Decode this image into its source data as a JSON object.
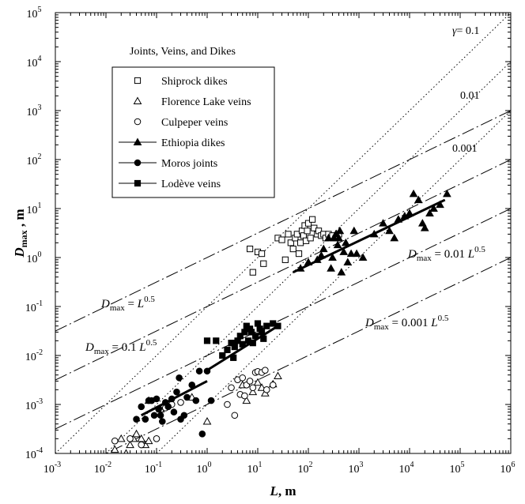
{
  "chart_data": {
    "type": "scatter",
    "title": "Joints, Veins, and Dikes",
    "xlabel": "L, m",
    "ylabel": "Dmax , m",
    "x_scale": "log",
    "y_scale": "log",
    "xlim": [
      0.001,
      1000000
    ],
    "ylim": [
      0.0001,
      100000
    ],
    "x_tick_exponents": [
      "-3",
      "-2",
      "-1",
      "0",
      "1",
      "2",
      "3",
      "4",
      "5",
      "6"
    ],
    "y_tick_exponents": [
      "-4",
      "-3",
      "-2",
      "-1",
      "0",
      "1",
      "2",
      "3",
      "4",
      "5"
    ],
    "grid": false,
    "legend": {
      "placement": "upper-left",
      "entries": [
        {
          "label": "Shiprock dikes",
          "marker": "square-open",
          "line": "none"
        },
        {
          "label": "Florence Lake veins",
          "marker": "triangle-open",
          "line": "none"
        },
        {
          "label": "Culpeper veins",
          "marker": "circle-open",
          "line": "none"
        },
        {
          "label": "Ethiopia dikes",
          "marker": "triangle-filled",
          "line": "solid"
        },
        {
          "label": "Moros joints",
          "marker": "circle-filled",
          "line": "solid"
        },
        {
          "label": "Lodève veins",
          "marker": "square-filled",
          "line": "solid"
        }
      ]
    },
    "reference_lines": [
      {
        "kind": "dotted",
        "label": "γ= 0.1",
        "slope": 1,
        "coefficient": 0.1,
        "x_range": [
          0.001,
          1000000
        ]
      },
      {
        "kind": "dotted",
        "label": "0.01",
        "slope": 1,
        "coefficient": 0.01,
        "x_range": [
          0.01,
          1000000
        ]
      },
      {
        "kind": "dotted",
        "label": "0.001",
        "slope": 1,
        "coefficient": 0.001,
        "x_range": [
          0.1,
          1000000
        ]
      },
      {
        "kind": "dashed",
        "label": "L",
        "label_prefix": "D",
        "label_sub": "max",
        "label_coef": " = ",
        "label_exp": "0.5",
        "slope": 0.5,
        "coefficient": 1,
        "x_range": [
          0.001,
          1000000
        ]
      },
      {
        "kind": "dashed",
        "label": "L",
        "label_prefix": "D",
        "label_sub": "max",
        "label_coef": " = 0.1 ",
        "label_exp": "0.5",
        "slope": 0.5,
        "coefficient": 0.1,
        "x_range": [
          0.001,
          1000000
        ]
      },
      {
        "kind": "dashed",
        "label": "L",
        "label_prefix": "D",
        "label_sub": "max",
        "label_coef": " = 0.01 ",
        "label_exp": "0.5",
        "slope": 0.5,
        "coefficient": 0.01,
        "x_range": [
          0.001,
          1000000
        ]
      },
      {
        "kind": "dashed",
        "label": "L",
        "label_prefix": "D",
        "label_sub": "max",
        "label_coef": " = 0.001 ",
        "label_exp": "0.5",
        "slope": 0.5,
        "coefficient": 0.001,
        "x_range": [
          0.001,
          1000000
        ]
      }
    ],
    "fit_lines": [
      {
        "series": "Ethiopia dikes",
        "x": [
          50,
          50000
        ],
        "y": [
          0.5,
          15
        ]
      },
      {
        "series": "Moros joints",
        "x": [
          0.05,
          1
        ],
        "y": [
          0.0006,
          0.003
        ]
      },
      {
        "series": "Lodève veins",
        "x": [
          1,
          25
        ],
        "y": [
          0.005,
          0.04
        ]
      }
    ],
    "series": [
      {
        "name": "Shiprock dikes",
        "marker": "square-open",
        "points": [
          [
            7,
            1.5
          ],
          [
            8,
            0.5
          ],
          [
            10,
            1.3
          ],
          [
            12,
            1.2
          ],
          [
            13,
            0.75
          ],
          [
            25,
            2.5
          ],
          [
            30,
            2.3
          ],
          [
            35,
            0.9
          ],
          [
            40,
            3
          ],
          [
            45,
            2
          ],
          [
            50,
            1.5
          ],
          [
            55,
            2.5
          ],
          [
            60,
            3
          ],
          [
            65,
            1.2
          ],
          [
            70,
            2
          ],
          [
            75,
            3.5
          ],
          [
            80,
            2.8
          ],
          [
            85,
            4.5
          ],
          [
            90,
            2.2
          ],
          [
            95,
            3.5
          ],
          [
            100,
            5
          ],
          [
            110,
            2.5
          ],
          [
            120,
            6
          ],
          [
            130,
            4
          ],
          [
            150,
            3
          ],
          [
            160,
            3.5
          ],
          [
            180,
            2.8
          ],
          [
            200,
            3
          ],
          [
            220,
            2.5
          ],
          [
            250,
            3
          ],
          [
            300,
            2.8
          ],
          [
            350,
            2.5
          ],
          [
            400,
            3
          ]
        ]
      },
      {
        "name": "Florence Lake veins",
        "marker": "triangle-open",
        "points": [
          [
            0.015,
            0.00012
          ],
          [
            0.02,
            0.0002
          ],
          [
            0.025,
            0.0001
          ],
          [
            0.03,
            0.00015
          ],
          [
            0.035,
            0.0002
          ],
          [
            0.04,
            0.00025
          ],
          [
            0.05,
            0.0002
          ],
          [
            0.06,
            0.00015
          ],
          [
            0.07,
            0.00018
          ],
          [
            0.07,
            0.0012
          ],
          [
            0.12,
            0.0008
          ],
          [
            0.5,
            0.0014
          ],
          [
            1,
            0.00045
          ],
          [
            5,
            0.0025
          ],
          [
            6,
            0.0012
          ],
          [
            8,
            0.0018
          ],
          [
            10,
            0.0028
          ],
          [
            12,
            0.0022
          ],
          [
            14,
            0.0017
          ],
          [
            20,
            0.0026
          ],
          [
            25,
            0.0038
          ]
        ]
      },
      {
        "name": "Culpeper veins",
        "marker": "circle-open",
        "points": [
          [
            0.015,
            0.00018
          ],
          [
            0.03,
            0.0002
          ],
          [
            0.05,
            0.00015
          ],
          [
            0.1,
            0.0002
          ],
          [
            0.15,
            0.00085
          ],
          [
            0.2,
            0.001
          ],
          [
            0.3,
            0.0011
          ],
          [
            2.5,
            0.001
          ],
          [
            3,
            0.0022
          ],
          [
            4,
            0.0032
          ],
          [
            4.5,
            0.0016
          ],
          [
            5,
            0.0035
          ],
          [
            5.5,
            0.0015
          ],
          [
            6,
            0.0025
          ],
          [
            7,
            0.003
          ],
          [
            8,
            0.0022
          ],
          [
            9,
            0.0045
          ],
          [
            10,
            0.0047
          ],
          [
            12,
            0.0045
          ],
          [
            14,
            0.005
          ],
          [
            15,
            0.002
          ],
          [
            20,
            0.0025
          ],
          [
            3.5,
            0.0006
          ]
        ]
      },
      {
        "name": "Ethiopia dikes",
        "marker": "triangle-filled",
        "points": [
          [
            70,
            0.6
          ],
          [
            100,
            0.8
          ],
          [
            150,
            0.9
          ],
          [
            180,
            1.1
          ],
          [
            200,
            1.5
          ],
          [
            250,
            2.5
          ],
          [
            280,
            0.6
          ],
          [
            300,
            1
          ],
          [
            320,
            2.5
          ],
          [
            350,
            3
          ],
          [
            380,
            1.8
          ],
          [
            400,
            2.5
          ],
          [
            420,
            3.5
          ],
          [
            450,
            0.5
          ],
          [
            500,
            1.3
          ],
          [
            550,
            2
          ],
          [
            600,
            0.8
          ],
          [
            700,
            1.2
          ],
          [
            800,
            3.5
          ],
          [
            900,
            1.2
          ],
          [
            1200,
            1
          ],
          [
            2000,
            3
          ],
          [
            3000,
            5
          ],
          [
            4000,
            3.5
          ],
          [
            5000,
            2.5
          ],
          [
            6000,
            6
          ],
          [
            8000,
            7
          ],
          [
            10000,
            8
          ],
          [
            12000,
            20
          ],
          [
            15000,
            15
          ],
          [
            18000,
            5
          ],
          [
            20000,
            4
          ],
          [
            25000,
            8
          ],
          [
            30000,
            10
          ],
          [
            40000,
            12
          ],
          [
            55000,
            20
          ]
        ]
      },
      {
        "name": "Moros joints",
        "marker": "circle-filled",
        "points": [
          [
            0.04,
            0.0005
          ],
          [
            0.05,
            0.0009
          ],
          [
            0.06,
            0.0005
          ],
          [
            0.07,
            0.0012
          ],
          [
            0.08,
            0.0012
          ],
          [
            0.09,
            0.0006
          ],
          [
            0.1,
            0.0013
          ],
          [
            0.11,
            0.0008
          ],
          [
            0.12,
            0.0006
          ],
          [
            0.13,
            0.00045
          ],
          [
            0.15,
            0.0011
          ],
          [
            0.17,
            0.0009
          ],
          [
            0.2,
            0.0013
          ],
          [
            0.22,
            0.0007
          ],
          [
            0.25,
            0.0018
          ],
          [
            0.28,
            0.0035
          ],
          [
            0.3,
            0.0005
          ],
          [
            0.35,
            0.0006
          ],
          [
            0.4,
            0.0014
          ],
          [
            0.5,
            0.0025
          ],
          [
            0.6,
            0.0012
          ],
          [
            0.7,
            0.0048
          ],
          [
            0.8,
            0.00025
          ],
          [
            1,
            0.0048
          ],
          [
            1.2,
            0.0012
          ]
        ]
      },
      {
        "name": "Lodève veins",
        "marker": "square-filled",
        "points": [
          [
            1,
            0.02
          ],
          [
            1.5,
            0.02
          ],
          [
            2,
            0.01
          ],
          [
            2.5,
            0.013
          ],
          [
            3,
            0.018
          ],
          [
            3.3,
            0.009
          ],
          [
            3.5,
            0.015
          ],
          [
            4,
            0.02
          ],
          [
            4.5,
            0.025
          ],
          [
            5,
            0.017
          ],
          [
            5.5,
            0.03
          ],
          [
            6,
            0.04
          ],
          [
            6.5,
            0.02
          ],
          [
            7,
            0.035
          ],
          [
            7.5,
            0.03
          ],
          [
            8,
            0.018
          ],
          [
            9,
            0.025
          ],
          [
            10,
            0.045
          ],
          [
            11,
            0.035
          ],
          [
            12,
            0.03
          ],
          [
            13,
            0.022
          ],
          [
            15,
            0.04
          ],
          [
            20,
            0.045
          ],
          [
            25,
            0.04
          ]
        ]
      }
    ]
  }
}
